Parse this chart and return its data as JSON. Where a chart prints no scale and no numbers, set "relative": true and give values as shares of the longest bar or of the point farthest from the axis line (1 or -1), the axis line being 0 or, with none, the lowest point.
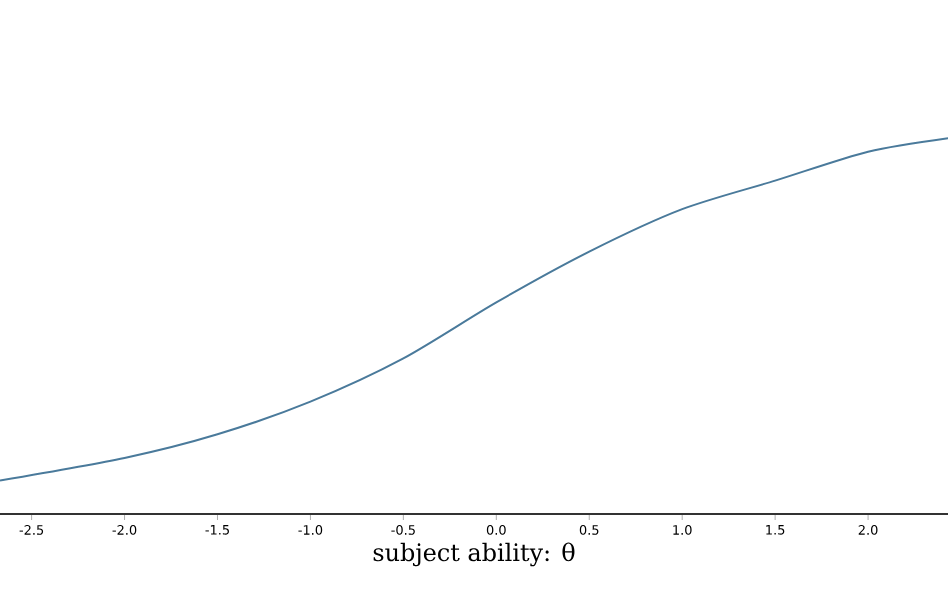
{
  "chart_data": {
    "type": "line",
    "xlabel": "subject ability: θ",
    "relative": true,
    "series": [
      {
        "color": "#4a7a9b",
        "x": [
          -2.67,
          -2.0,
          -1.5,
          -1.0,
          -0.5,
          0.0,
          0.5,
          1.0,
          1.5,
          2.0,
          2.43
        ],
        "values": [
          0.089,
          0.149,
          0.212,
          0.299,
          0.414,
          0.563,
          0.698,
          0.811,
          0.887,
          0.964,
          1.0
        ]
      }
    ],
    "xlim": [
      -2.67,
      2.43
    ],
    "xticks": [
      {
        "value": -2.5,
        "label": "-2.5"
      },
      {
        "value": -2.0,
        "label": "-2.0"
      },
      {
        "value": -1.5,
        "label": "-1.5"
      },
      {
        "value": -1.0,
        "label": "-1.0"
      },
      {
        "value": -0.5,
        "label": "-0.5"
      },
      {
        "value": 0.0,
        "label": "0.0"
      },
      {
        "value": 0.5,
        "label": "0.5"
      },
      {
        "value": 1.0,
        "label": "1.0"
      },
      {
        "value": 1.5,
        "label": "1.5"
      },
      {
        "value": 2.0,
        "label": "2.0"
      }
    ],
    "grid": false
  }
}
